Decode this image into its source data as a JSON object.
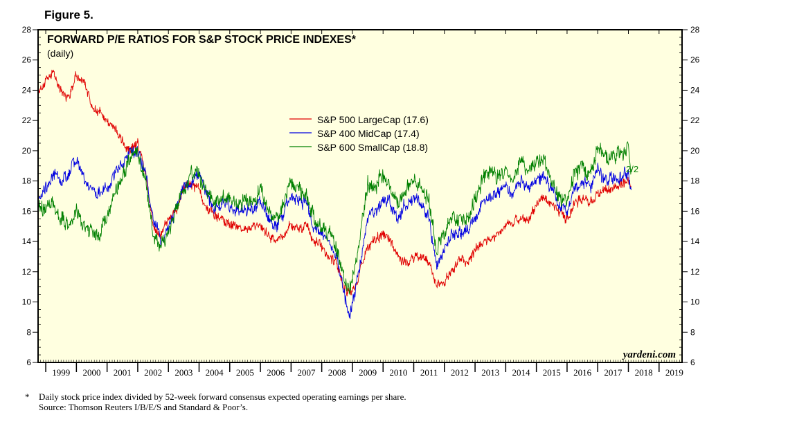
{
  "figure_label": "Figure 5.",
  "footnote": {
    "star": "*",
    "text": "Daily stock price index divided by 52-week forward consensus expected operating earnings per share.",
    "source": "Source: Thomson Reuters I/B/E/S and Standard & Poor’s."
  },
  "chart_data": {
    "type": "line",
    "title": "FORWARD P/E RATIOS FOR S&P STOCK PRICE INDEXES*",
    "subtitle": "(daily)",
    "watermark": "yardeni.com",
    "date_annotation": "2/2",
    "xlabel": "",
    "ylabel": "",
    "xlim": [
      1998.75,
      2019.75
    ],
    "ylim": [
      6,
      28
    ],
    "yticks": [
      6,
      8,
      10,
      12,
      14,
      16,
      18,
      20,
      22,
      24,
      26,
      28
    ],
    "year_labels": [
      "1999",
      "2000",
      "2001",
      "2002",
      "2003",
      "2004",
      "2005",
      "2006",
      "2007",
      "2008",
      "2009",
      "2010",
      "2011",
      "2012",
      "2013",
      "2014",
      "2015",
      "2016",
      "2017",
      "2018",
      "2019"
    ],
    "grid": false,
    "legend_position": "upper-center",
    "background": "#ffffe0",
    "series": [
      {
        "name": "S&P 500 LargeCap (17.6)",
        "color": "#e00000",
        "x": [
          1998.75,
          1999.0,
          1999.25,
          1999.5,
          1999.75,
          2000.0,
          2000.25,
          2000.5,
          2000.75,
          2001.0,
          2001.25,
          2001.5,
          2001.75,
          2002.0,
          2002.25,
          2002.5,
          2002.75,
          2003.0,
          2003.25,
          2003.5,
          2003.75,
          2004.0,
          2004.25,
          2004.5,
          2004.75,
          2005.0,
          2005.25,
          2005.5,
          2005.75,
          2006.0,
          2006.25,
          2006.5,
          2006.75,
          2007.0,
          2007.25,
          2007.5,
          2007.75,
          2008.0,
          2008.25,
          2008.5,
          2008.75,
          2008.9,
          2009.0,
          2009.2,
          2009.5,
          2009.75,
          2010.0,
          2010.25,
          2010.5,
          2010.75,
          2011.0,
          2011.25,
          2011.5,
          2011.75,
          2012.0,
          2012.25,
          2012.5,
          2012.75,
          2013.0,
          2013.25,
          2013.5,
          2013.75,
          2014.0,
          2014.25,
          2014.5,
          2014.75,
          2015.0,
          2015.25,
          2015.5,
          2015.75,
          2016.0,
          2016.25,
          2016.5,
          2016.75,
          2017.0,
          2017.25,
          2017.5,
          2017.75,
          2018.0,
          2018.09
        ],
        "y": [
          24.0,
          24.5,
          25.2,
          24.0,
          23.5,
          25.0,
          24.5,
          23.0,
          22.5,
          22.0,
          21.5,
          20.5,
          20.0,
          20.5,
          18.5,
          15.0,
          14.5,
          15.5,
          16.0,
          17.5,
          17.8,
          17.5,
          16.2,
          15.8,
          15.5,
          15.2,
          15.0,
          14.8,
          14.8,
          15.0,
          14.5,
          14.0,
          14.5,
          15.0,
          14.8,
          15.0,
          14.0,
          13.5,
          13.0,
          12.5,
          11.0,
          10.5,
          10.8,
          11.5,
          13.8,
          14.0,
          14.5,
          14.0,
          13.0,
          12.5,
          13.0,
          13.0,
          12.5,
          11.0,
          11.5,
          12.0,
          12.8,
          12.5,
          13.5,
          14.0,
          14.2,
          14.5,
          15.0,
          15.2,
          15.5,
          15.3,
          16.5,
          16.8,
          16.5,
          16.0,
          15.5,
          16.5,
          16.8,
          16.5,
          17.2,
          17.3,
          17.6,
          17.8,
          18.0,
          17.6
        ]
      },
      {
        "name": "S&P 400 MidCap (17.4)",
        "color": "#0000e0",
        "x": [
          1998.75,
          1999.0,
          1999.25,
          1999.5,
          1999.75,
          2000.0,
          2000.25,
          2000.5,
          2000.75,
          2001.0,
          2001.25,
          2001.5,
          2001.75,
          2002.0,
          2002.25,
          2002.5,
          2002.75,
          2003.0,
          2003.25,
          2003.5,
          2003.75,
          2004.0,
          2004.25,
          2004.5,
          2004.75,
          2005.0,
          2005.25,
          2005.5,
          2005.75,
          2006.0,
          2006.25,
          2006.5,
          2006.75,
          2007.0,
          2007.25,
          2007.5,
          2007.75,
          2008.0,
          2008.25,
          2008.5,
          2008.75,
          2008.9,
          2009.0,
          2009.2,
          2009.5,
          2009.75,
          2010.0,
          2010.25,
          2010.5,
          2010.75,
          2011.0,
          2011.25,
          2011.5,
          2011.75,
          2012.0,
          2012.25,
          2012.5,
          2012.75,
          2013.0,
          2013.25,
          2013.5,
          2013.75,
          2014.0,
          2014.25,
          2014.5,
          2014.75,
          2015.0,
          2015.25,
          2015.5,
          2015.75,
          2016.0,
          2016.25,
          2016.5,
          2016.75,
          2017.0,
          2017.25,
          2017.5,
          2017.75,
          2018.0,
          2018.09
        ],
        "y": [
          17.0,
          17.5,
          18.5,
          18.0,
          18.5,
          19.5,
          18.0,
          17.5,
          17.0,
          17.5,
          18.5,
          19.0,
          20.0,
          20.0,
          18.5,
          15.5,
          14.0,
          15.0,
          16.0,
          17.5,
          18.0,
          18.5,
          17.0,
          16.2,
          16.5,
          16.5,
          16.0,
          16.2,
          16.0,
          16.8,
          15.5,
          15.0,
          16.0,
          17.0,
          16.8,
          16.5,
          15.0,
          14.5,
          14.0,
          13.0,
          10.5,
          9.0,
          10.0,
          12.0,
          15.5,
          16.0,
          16.8,
          16.5,
          15.5,
          16.5,
          16.8,
          16.5,
          15.5,
          12.5,
          13.5,
          14.5,
          14.5,
          14.8,
          15.5,
          16.5,
          17.0,
          17.0,
          17.5,
          17.2,
          18.0,
          17.5,
          18.0,
          18.5,
          17.5,
          16.5,
          16.0,
          17.5,
          18.0,
          17.5,
          18.8,
          18.0,
          18.2,
          18.3,
          18.5,
          17.4
        ]
      },
      {
        "name": "S&P 600 SmallCap (18.8)",
        "color": "#008000",
        "x": [
          1998.75,
          1999.0,
          1999.25,
          1999.5,
          1999.75,
          2000.0,
          2000.25,
          2000.5,
          2000.75,
          2001.0,
          2001.25,
          2001.5,
          2001.75,
          2002.0,
          2002.25,
          2002.5,
          2002.75,
          2003.0,
          2003.25,
          2003.5,
          2003.75,
          2004.0,
          2004.25,
          2004.5,
          2004.75,
          2005.0,
          2005.25,
          2005.5,
          2005.75,
          2006.0,
          2006.25,
          2006.5,
          2006.75,
          2007.0,
          2007.25,
          2007.5,
          2007.75,
          2008.0,
          2008.25,
          2008.5,
          2008.75,
          2008.9,
          2009.0,
          2009.2,
          2009.5,
          2009.75,
          2010.0,
          2010.25,
          2010.5,
          2010.75,
          2011.0,
          2011.25,
          2011.5,
          2011.75,
          2012.0,
          2012.25,
          2012.5,
          2012.75,
          2013.0,
          2013.25,
          2013.5,
          2013.75,
          2014.0,
          2014.25,
          2014.5,
          2014.75,
          2015.0,
          2015.25,
          2015.5,
          2015.75,
          2016.0,
          2016.25,
          2016.5,
          2016.75,
          2017.0,
          2017.25,
          2017.5,
          2017.75,
          2018.0,
          2018.09
        ],
        "y": [
          16.5,
          16.0,
          16.5,
          15.5,
          15.0,
          16.0,
          15.0,
          14.5,
          14.5,
          15.5,
          17.0,
          18.5,
          19.5,
          20.0,
          18.0,
          14.5,
          13.5,
          14.5,
          16.0,
          17.5,
          18.5,
          18.5,
          17.0,
          16.5,
          17.0,
          16.8,
          16.5,
          16.8,
          16.5,
          17.5,
          16.0,
          15.5,
          16.5,
          17.8,
          17.5,
          17.0,
          15.5,
          15.0,
          14.5,
          13.5,
          11.5,
          10.5,
          11.5,
          13.5,
          18.0,
          17.5,
          18.5,
          17.5,
          16.5,
          17.5,
          18.0,
          17.5,
          16.5,
          13.5,
          14.5,
          15.5,
          15.5,
          15.5,
          17.0,
          18.0,
          18.5,
          18.3,
          18.5,
          18.0,
          19.5,
          18.5,
          19.3,
          19.5,
          18.0,
          17.0,
          16.8,
          18.5,
          19.0,
          18.5,
          20.2,
          19.5,
          19.8,
          19.5,
          20.3,
          18.8
        ]
      }
    ]
  }
}
